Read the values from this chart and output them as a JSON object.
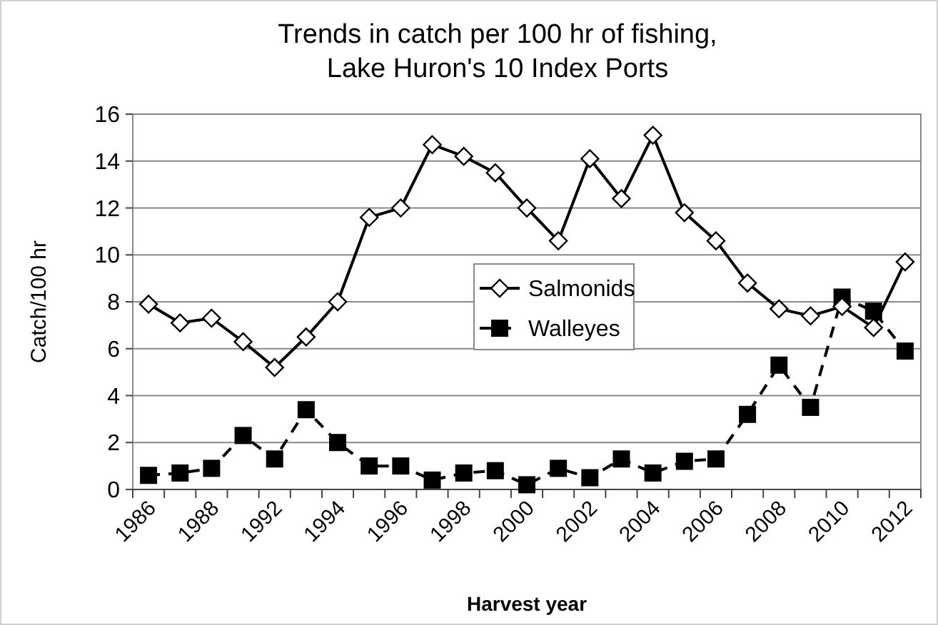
{
  "chart_data": {
    "type": "line",
    "title": "Trends in catch per 100 hr of fishing,\nLake Huron's 10 Index Ports",
    "xlabel": "Harvest year",
    "ylabel": "Catch/100 hr",
    "categories": [
      "1986",
      null,
      "1988",
      null,
      "1992",
      null,
      "1994",
      null,
      "1996",
      null,
      "1998",
      null,
      "2000",
      null,
      "2002",
      null,
      "2004",
      null,
      "2006",
      null,
      "2008",
      null,
      "2010",
      null,
      "2012"
    ],
    "series": [
      {
        "name": "Salmonids",
        "color": "#000000",
        "marker": "diamond",
        "line_style": "solid",
        "values": [
          7.9,
          7.1,
          7.3,
          6.3,
          5.2,
          6.5,
          8.0,
          11.6,
          12.0,
          14.7,
          14.2,
          13.5,
          12.0,
          10.6,
          14.1,
          12.4,
          15.1,
          11.8,
          10.6,
          8.8,
          7.7,
          7.4,
          7.8,
          6.9,
          9.7
        ]
      },
      {
        "name": "Walleyes",
        "color": "#000000",
        "marker": "square",
        "line_style": "dashed",
        "values": [
          0.6,
          0.7,
          0.9,
          2.3,
          1.3,
          3.4,
          2.0,
          1.0,
          1.0,
          0.4,
          0.7,
          0.8,
          0.2,
          0.9,
          0.5,
          1.3,
          0.7,
          1.2,
          1.3,
          3.2,
          5.3,
          3.5,
          8.2,
          7.6,
          5.9
        ]
      }
    ],
    "ylim": [
      0,
      16
    ],
    "yticks": [
      0,
      2,
      4,
      6,
      8,
      10,
      12,
      14,
      16
    ],
    "grid": "y",
    "legend": "center"
  }
}
